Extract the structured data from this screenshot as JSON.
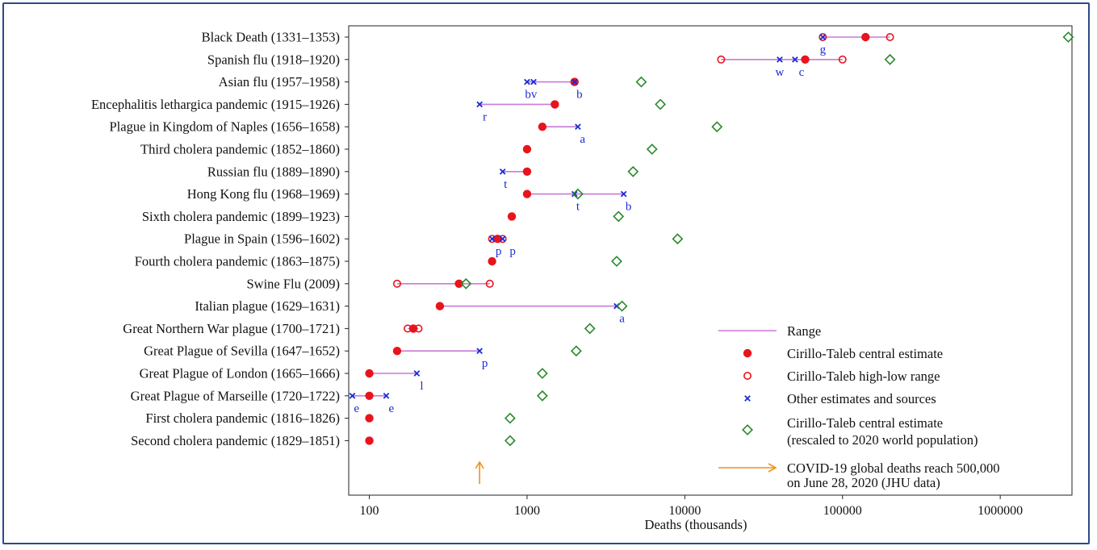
{
  "chart_data": {
    "type": "scatter",
    "xscale": "log",
    "xlim": [
      74,
      2850000
    ],
    "xticks": [
      100,
      1000,
      10000,
      100000,
      1000000
    ],
    "xtick_labels": [
      "100",
      "1000",
      "10000",
      "100000",
      "1000000"
    ],
    "xlabel": "Deaths (thousands)",
    "grid": false,
    "legend_position": "bottom-right",
    "colors": {
      "range": "#c87ad6",
      "central": "#e8141c",
      "highlow": "#e8141c",
      "other": "#1a2bd6",
      "rescaled": "#2a8a2a",
      "covid": "#f0921e"
    },
    "legend": [
      {
        "key": "range",
        "label": "Range"
      },
      {
        "key": "central",
        "label": "Cirillo-Taleb central estimate"
      },
      {
        "key": "highlow",
        "label": "Cirillo-Taleb high-low range"
      },
      {
        "key": "other",
        "label": "Other estimates and sources"
      },
      {
        "key": "rescaled",
        "label": "Cirillo-Taleb central estimate",
        "label2": "(rescaled to 2020 world population)"
      },
      {
        "key": "covid",
        "label": "COVID-19 global deaths reach 500,000",
        "label2": "on June 28, 2020 (JHU data)"
      }
    ],
    "covid_marker": {
      "x": 500
    },
    "rows": [
      {
        "label": "Black Death (1331–1353)",
        "central": 140000,
        "lows": [
          75000,
          200000
        ],
        "others": [
          75000
        ],
        "other_labels": [
          {
            "text": "g",
            "x": 75000
          }
        ],
        "rescaled": 2700000,
        "range": [
          75000,
          200000
        ]
      },
      {
        "label": "Spanish flu (1918–1920)",
        "central": 58000,
        "lows": [
          17000,
          100000
        ],
        "others": [
          40000,
          50000
        ],
        "other_labels": [
          {
            "text": "w",
            "x": 40000
          },
          {
            "text": "c",
            "x": 55000
          }
        ],
        "rescaled": 200000,
        "range": [
          17000,
          100000
        ]
      },
      {
        "label": "Asian flu (1957–1958)",
        "central": 2000,
        "lows": [
          2000
        ],
        "others": [
          1000,
          1100,
          2000
        ],
        "other_labels": [
          {
            "text": "bv",
            "x": 1060
          },
          {
            "text": "b",
            "x": 2150
          }
        ],
        "rescaled": 5300,
        "range": [
          1000,
          2000
        ]
      },
      {
        "label": "Encephalitis lethargica pandemic (1915–1926)",
        "central": 1500,
        "lows": [],
        "others": [
          500
        ],
        "other_labels": [
          {
            "text": "r",
            "x": 540
          }
        ],
        "rescaled": 7000,
        "range": [
          500,
          1500
        ]
      },
      {
        "label": "Plague in Kingdom of Naples (1656–1658)",
        "central": 1250,
        "lows": [],
        "others": [
          2100
        ],
        "other_labels": [
          {
            "text": "a",
            "x": 2250
          }
        ],
        "rescaled": 16000,
        "range": [
          1250,
          2100
        ]
      },
      {
        "label": "Third cholera pandemic (1852–1860)",
        "central": 1000,
        "lows": [],
        "others": [],
        "other_labels": [],
        "rescaled": 6200,
        "range": null
      },
      {
        "label": "Russian flu (1889–1890)",
        "central": 1000,
        "lows": [],
        "others": [
          700
        ],
        "other_labels": [
          {
            "text": "t",
            "x": 730
          }
        ],
        "rescaled": 4700,
        "range": [
          700,
          1000
        ]
      },
      {
        "label": "Hong Kong flu (1968–1969)",
        "central": 1000,
        "lows": [],
        "others": [
          2000,
          4100
        ],
        "other_labels": [
          {
            "text": "t",
            "x": 2100
          },
          {
            "text": "b",
            "x": 4400
          }
        ],
        "rescaled": 2100,
        "range": [
          1000,
          4100
        ]
      },
      {
        "label": "Sixth cholera pandemic (1899–1923)",
        "central": 800,
        "lows": [],
        "others": [],
        "other_labels": [],
        "rescaled": 3800,
        "range": null
      },
      {
        "label": "Plague in Spain (1596–1602)",
        "central": 650,
        "lows": [
          600,
          700
        ],
        "others": [
          600,
          700
        ],
        "other_labels": [
          {
            "text": "p",
            "x": 660
          },
          {
            "text": "p",
            "x": 810
          }
        ],
        "rescaled": 9000,
        "range": [
          600,
          700
        ]
      },
      {
        "label": "Fourth cholera pandemic (1863–1875)",
        "central": 600,
        "lows": [],
        "others": [],
        "other_labels": [],
        "rescaled": 3700,
        "range": null
      },
      {
        "label": "Swine Flu (2009)",
        "central": 370,
        "lows": [
          150,
          580
        ],
        "others": [],
        "other_labels": [],
        "rescaled": 410,
        "range": [
          150,
          580
        ]
      },
      {
        "label": "Italian plague (1629–1631)",
        "central": 280,
        "lows": [],
        "others": [
          3700
        ],
        "other_labels": [
          {
            "text": "a",
            "x": 4000
          }
        ],
        "rescaled": 4000,
        "range": [
          280,
          3700
        ]
      },
      {
        "label": "Great Northern War plague (1700–1721)",
        "central": 190,
        "lows": [
          175,
          205
        ],
        "others": [],
        "other_labels": [],
        "rescaled": 2500,
        "range": [
          175,
          205
        ]
      },
      {
        "label": "Great Plague of Sevilla (1647–1652)",
        "central": 150,
        "lows": [],
        "others": [
          500
        ],
        "other_labels": [
          {
            "text": "p",
            "x": 540
          }
        ],
        "rescaled": 2050,
        "range": [
          150,
          500
        ]
      },
      {
        "label": "Great Plague of London (1665–1666)",
        "central": 100,
        "lows": [],
        "others": [
          200
        ],
        "other_labels": [
          {
            "text": "l",
            "x": 215
          }
        ],
        "rescaled": 1250,
        "range": [
          100,
          200
        ]
      },
      {
        "label": "Great Plague of Marseille (1720–1722)",
        "central": 100,
        "lows": [],
        "others": [
          78,
          128
        ],
        "other_labels": [
          {
            "text": "e",
            "x": 83
          },
          {
            "text": "e",
            "x": 138
          }
        ],
        "rescaled": 1250,
        "range": [
          78,
          128
        ]
      },
      {
        "label": "First cholera pandemic (1816–1826)",
        "central": 100,
        "lows": [],
        "others": [],
        "other_labels": [],
        "rescaled": 780,
        "range": null
      },
      {
        "label": "Second cholera pandemic (1829–1851)",
        "central": 100,
        "lows": [],
        "others": [],
        "other_labels": [],
        "rescaled": 780,
        "range": null
      }
    ]
  }
}
